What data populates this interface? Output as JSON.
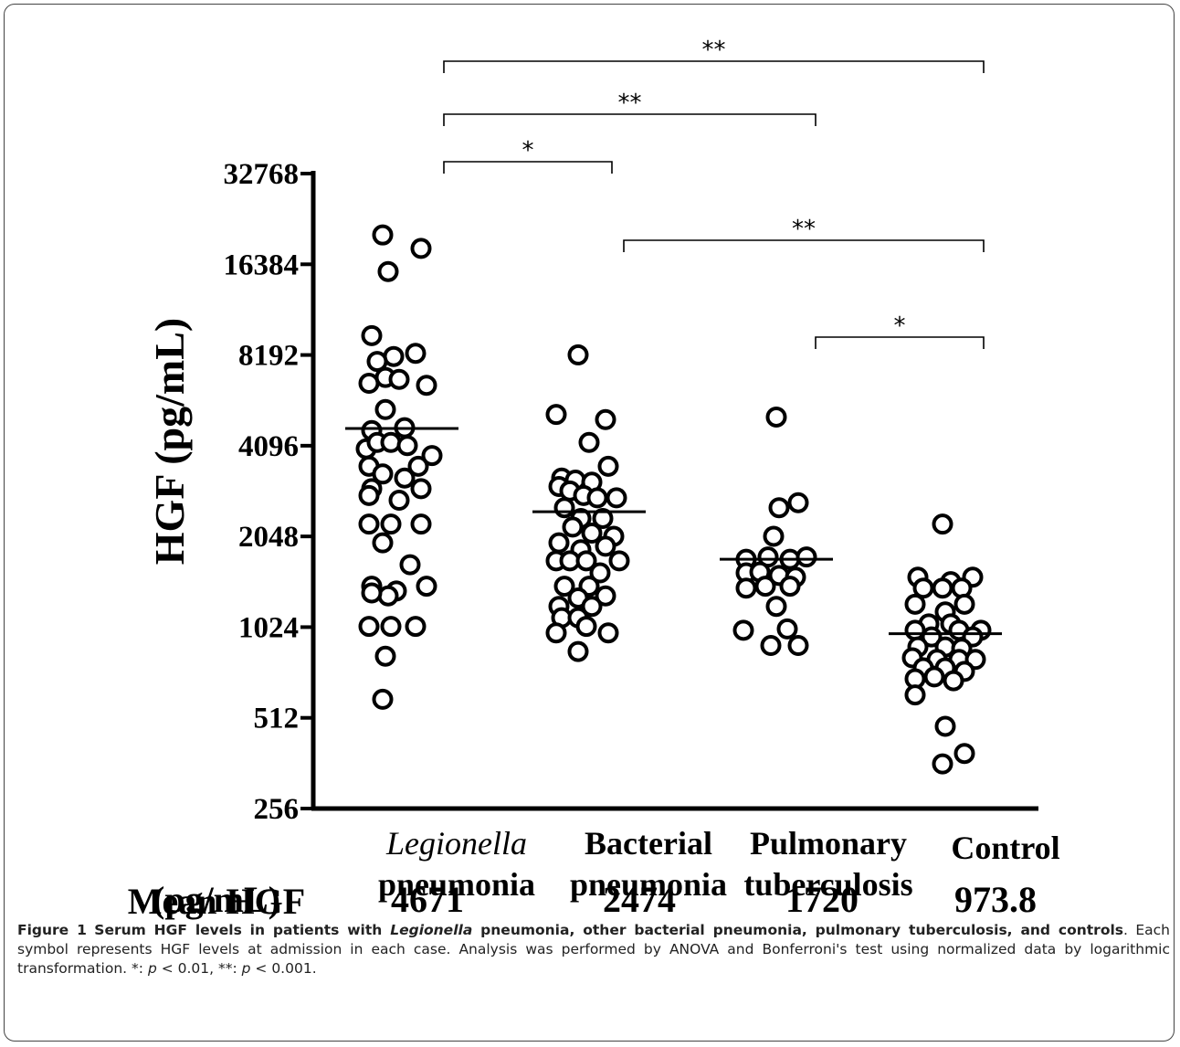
{
  "chart_data": {
    "type": "scatter",
    "title": "",
    "ylabel": "HGF (pg/mL)",
    "yscale": "log2",
    "ylim": [
      256,
      32768
    ],
    "yticks": [
      32768,
      16384,
      8192,
      4096,
      2048,
      1024,
      512,
      256
    ],
    "categories": [
      {
        "line1": "Legionella",
        "line2": "pneumonia",
        "italic_line1": true
      },
      {
        "line1": "Bacterial",
        "line2": "pneumonia",
        "italic_line1": false
      },
      {
        "line1": "Pulmonary",
        "line2": "tuberculosis",
        "italic_line1": false
      },
      {
        "line1": "Control",
        "line2": "",
        "italic_line1": false
      }
    ],
    "mean_label_line1": "Mean HGF",
    "mean_label_line2": "(pg/mL)",
    "means": [
      {
        "value": 4671,
        "label": "4671"
      },
      {
        "value": 2474,
        "label": "2474"
      },
      {
        "value": 1720,
        "label": "1720"
      },
      {
        "value": 973.8,
        "label": "973.8"
      }
    ],
    "series": [
      {
        "group": 0,
        "points": [
          [
            -0.35,
            20500
          ],
          [
            0.35,
            18500
          ],
          [
            -0.25,
            15500
          ],
          [
            -0.55,
            9500
          ],
          [
            -0.15,
            8100
          ],
          [
            0.25,
            8300
          ],
          [
            -0.45,
            7800
          ],
          [
            -0.6,
            6600
          ],
          [
            -0.3,
            6900
          ],
          [
            -0.05,
            6800
          ],
          [
            0.45,
            6500
          ],
          [
            -0.3,
            5400
          ],
          [
            -0.55,
            4600
          ],
          [
            0.05,
            4700
          ],
          [
            -0.65,
            4000
          ],
          [
            -0.45,
            4200
          ],
          [
            -0.2,
            4200
          ],
          [
            0.1,
            4100
          ],
          [
            0.55,
            3800
          ],
          [
            -0.6,
            3500
          ],
          [
            0.3,
            3500
          ],
          [
            -0.35,
            3300
          ],
          [
            0.05,
            3200
          ],
          [
            -0.55,
            2950
          ],
          [
            0.35,
            2950
          ],
          [
            -0.05,
            2700
          ],
          [
            -0.6,
            2800
          ],
          [
            0.35,
            2250
          ],
          [
            -0.6,
            2250
          ],
          [
            -0.2,
            2250
          ],
          [
            -0.35,
            1950
          ],
          [
            0.15,
            1650
          ],
          [
            -0.55,
            1400
          ],
          [
            0.45,
            1400
          ],
          [
            -0.1,
            1350
          ],
          [
            -0.25,
            1300
          ],
          [
            -0.55,
            1330
          ],
          [
            -0.6,
            1030
          ],
          [
            -0.2,
            1030
          ],
          [
            0.25,
            1030
          ],
          [
            -0.3,
            820
          ],
          [
            -0.35,
            590
          ]
        ]
      },
      {
        "group": 1,
        "points": [
          [
            -0.2,
            8200
          ],
          [
            -0.6,
            5200
          ],
          [
            0.3,
            5000
          ],
          [
            0.0,
            4200
          ],
          [
            0.35,
            3500
          ],
          [
            -0.5,
            3200
          ],
          [
            -0.25,
            3150
          ],
          [
            0.05,
            3100
          ],
          [
            -0.55,
            3000
          ],
          [
            -0.35,
            2900
          ],
          [
            -0.1,
            2800
          ],
          [
            0.15,
            2750
          ],
          [
            0.5,
            2750
          ],
          [
            -0.45,
            2550
          ],
          [
            -0.15,
            2350
          ],
          [
            0.25,
            2350
          ],
          [
            -0.3,
            2200
          ],
          [
            0.05,
            2100
          ],
          [
            0.45,
            2050
          ],
          [
            -0.55,
            1950
          ],
          [
            -0.15,
            1850
          ],
          [
            0.3,
            1900
          ],
          [
            -0.6,
            1700
          ],
          [
            -0.35,
            1700
          ],
          [
            -0.05,
            1700
          ],
          [
            0.55,
            1700
          ],
          [
            0.2,
            1550
          ],
          [
            -0.45,
            1400
          ],
          [
            0.0,
            1400
          ],
          [
            -0.2,
            1280
          ],
          [
            0.3,
            1300
          ],
          [
            -0.55,
            1200
          ],
          [
            0.05,
            1200
          ],
          [
            -0.5,
            1100
          ],
          [
            -0.2,
            1100
          ],
          [
            -0.6,
            980
          ],
          [
            -0.05,
            1030
          ],
          [
            0.35,
            980
          ],
          [
            -0.2,
            850
          ]
        ]
      },
      {
        "group": 2,
        "points": [
          [
            0.0,
            5100
          ],
          [
            0.05,
            2550
          ],
          [
            0.4,
            2650
          ],
          [
            -0.05,
            2050
          ],
          [
            -0.55,
            1720
          ],
          [
            -0.15,
            1750
          ],
          [
            0.25,
            1720
          ],
          [
            0.55,
            1750
          ],
          [
            -0.55,
            1550
          ],
          [
            -0.3,
            1560
          ],
          [
            0.05,
            1520
          ],
          [
            0.35,
            1500
          ],
          [
            -0.55,
            1380
          ],
          [
            -0.2,
            1400
          ],
          [
            0.25,
            1400
          ],
          [
            0.0,
            1200
          ],
          [
            -0.6,
            1000
          ],
          [
            0.2,
            1010
          ],
          [
            -0.1,
            890
          ],
          [
            0.4,
            890
          ]
        ]
      },
      {
        "group": 3,
        "points": [
          [
            -0.05,
            2250
          ],
          [
            -0.5,
            1500
          ],
          [
            0.1,
            1450
          ],
          [
            0.5,
            1500
          ],
          [
            -0.4,
            1380
          ],
          [
            -0.05,
            1380
          ],
          [
            0.3,
            1380
          ],
          [
            -0.55,
            1220
          ],
          [
            0.35,
            1220
          ],
          [
            0.0,
            1150
          ],
          [
            -0.3,
            1050
          ],
          [
            0.1,
            1050
          ],
          [
            -0.55,
            1000
          ],
          [
            0.25,
            1000
          ],
          [
            0.65,
            1000
          ],
          [
            -0.25,
            950
          ],
          [
            0.5,
            950
          ],
          [
            -0.5,
            880
          ],
          [
            0.0,
            880
          ],
          [
            0.3,
            870
          ],
          [
            -0.6,
            810
          ],
          [
            -0.15,
            800
          ],
          [
            0.25,
            800
          ],
          [
            0.55,
            800
          ],
          [
            -0.4,
            750
          ],
          [
            0.0,
            750
          ],
          [
            0.35,
            730
          ],
          [
            -0.55,
            690
          ],
          [
            -0.2,
            700
          ],
          [
            0.15,
            680
          ],
          [
            -0.55,
            610
          ],
          [
            0.0,
            480
          ],
          [
            -0.05,
            360
          ],
          [
            0.35,
            390
          ]
        ]
      }
    ],
    "comparisons": [
      {
        "from": 0,
        "to": 3,
        "label": "**"
      },
      {
        "from": 0,
        "to": 2,
        "label": "**"
      },
      {
        "from": 0,
        "to": 1,
        "label": "*"
      },
      {
        "from": 1,
        "to": 3,
        "label": "**"
      },
      {
        "from": 2,
        "to": 3,
        "label": "*"
      }
    ]
  },
  "caption": {
    "figure_label": "Figure 1",
    "title_part1": "Serum HGF levels in patients with ",
    "title_italic": "Legionella",
    "title_part2": " pneumonia, other bacterial pneumonia, pulmonary tuberculosis, and controls",
    "body_part1": ". Each symbol represents HGF levels at admission in each case. Analysis was performed by ANOVA and Bonferroni's test using normalized data by logarithmic transformation. *: ",
    "p1": "p",
    "body_part2": " < 0.01, **: ",
    "p2": "p",
    "body_part3": " < 0.001."
  }
}
